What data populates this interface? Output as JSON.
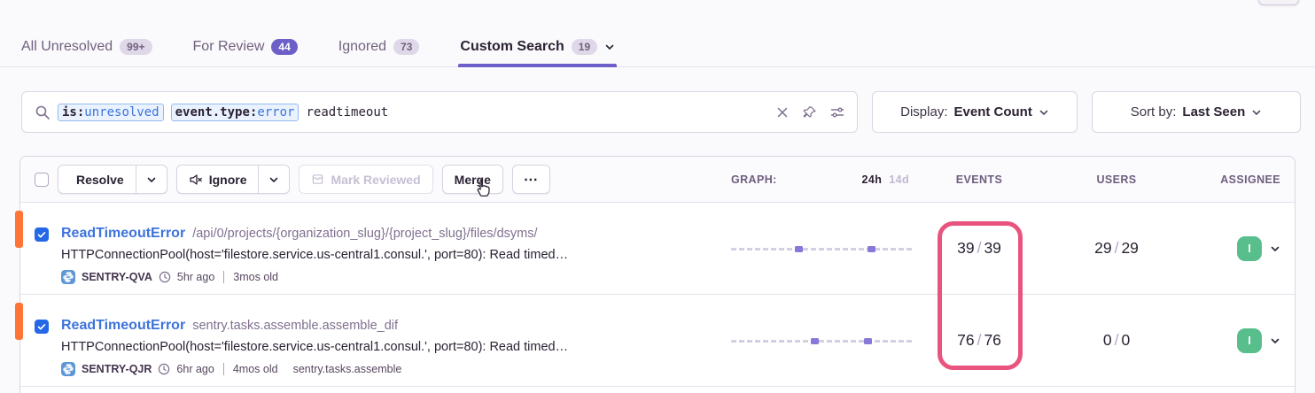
{
  "tabs": {
    "items": [
      {
        "label": "All Unresolved",
        "count": "99+"
      },
      {
        "label": "For Review",
        "count": "44"
      },
      {
        "label": "Ignored",
        "count": "73"
      },
      {
        "label": "Custom Search",
        "count": "19"
      }
    ]
  },
  "filters": {
    "search": {
      "tokens": [
        {
          "key": "is:",
          "value": "unresolved"
        },
        {
          "key": "event.type:",
          "value": "error"
        }
      ],
      "text": "readtimeout"
    },
    "display": {
      "label": "Display:",
      "value": "Event Count"
    },
    "sort": {
      "label": "Sort by:",
      "value": "Last Seen"
    }
  },
  "toolbar": {
    "resolve": "Resolve",
    "ignore": "Ignore",
    "mark_reviewed": "Mark Reviewed",
    "merge": "Merge",
    "more": "⋯"
  },
  "columns": {
    "graph": "GRAPH:",
    "range_primary": "24h",
    "range_secondary": "14d",
    "events": "EVENTS",
    "users": "USERS",
    "assignee": "ASSIGNEE"
  },
  "issues": [
    {
      "title": "ReadTimeoutError",
      "culprit": "/api/0/projects/{organization_slug}/{project_slug}/files/dsyms/",
      "message": "HTTPConnectionPool(host='filestore.service.us-central1.consul.', port=80): Read timed…",
      "project": "SENTRY-QVA",
      "last_seen": "5hr ago",
      "age": "3mos old",
      "task": "",
      "events_primary": "39",
      "events_secondary": "39",
      "users_primary": "29",
      "users_secondary": "29",
      "assignee_initial": "I",
      "sparkline_blips": [
        35,
        75
      ]
    },
    {
      "title": "ReadTimeoutError",
      "culprit": "sentry.tasks.assemble.assemble_dif",
      "message": "HTTPConnectionPool(host='filestore.service.us-central1.consul.', port=80): Read timed…",
      "project": "SENTRY-QJR",
      "last_seen": "6hr ago",
      "age": "4mos old",
      "task": "sentry.tasks.assemble",
      "events_primary": "76",
      "events_secondary": "76",
      "users_primary": "0",
      "users_secondary": "0",
      "assignee_initial": "I",
      "sparkline_blips": [
        44,
        73
      ]
    }
  ],
  "colors": {
    "accent_purple": "#6C5FC7",
    "level_orange": "#FF7437",
    "link_blue": "#3D74DB",
    "highlight_pink": "#E8547D",
    "assignee_green": "#57BE8C"
  },
  "slash": "/"
}
